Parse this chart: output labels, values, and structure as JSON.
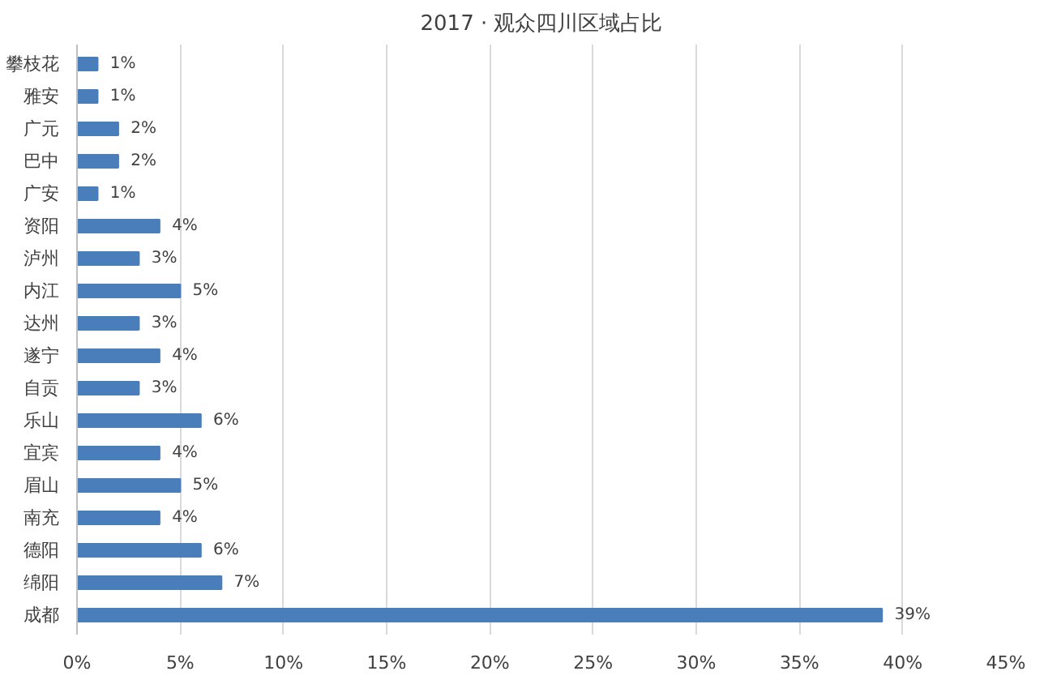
{
  "chart_data": {
    "type": "bar",
    "orientation": "horizontal",
    "title": "2017 · 观众四川区域占比",
    "categories": [
      "攀枝花",
      "雅安",
      "广元",
      "巴中",
      "广安",
      "资阳",
      "泸州",
      "内江",
      "达州",
      "遂宁",
      "自贡",
      "乐山",
      "宜宾",
      "眉山",
      "南充",
      "德阳",
      "绵阳",
      "成都"
    ],
    "values": [
      1,
      1,
      2,
      2,
      1,
      4,
      3,
      5,
      3,
      4,
      3,
      6,
      4,
      5,
      4,
      6,
      7,
      39
    ],
    "value_labels": [
      "1%",
      "1%",
      "2%",
      "2%",
      "1%",
      "4%",
      "3%",
      "5%",
      "3%",
      "4%",
      "3%",
      "6%",
      "4%",
      "5%",
      "4%",
      "6%",
      "7%",
      "39%"
    ],
    "color": "#4a7ebb",
    "xlim": [
      0,
      45
    ],
    "xticks": [
      {
        "value": 0,
        "label": "0%"
      },
      {
        "value": 5,
        "label": "5%"
      },
      {
        "value": 10,
        "label": "10%"
      },
      {
        "value": 15,
        "label": "15%"
      },
      {
        "value": 20,
        "label": "20%"
      },
      {
        "value": 25,
        "label": "25%"
      },
      {
        "value": 30,
        "label": "30%"
      },
      {
        "value": 35,
        "label": "35%"
      },
      {
        "value": 40,
        "label": "40%"
      },
      {
        "value": 45,
        "label": "45%"
      }
    ],
    "grid": "x"
  }
}
